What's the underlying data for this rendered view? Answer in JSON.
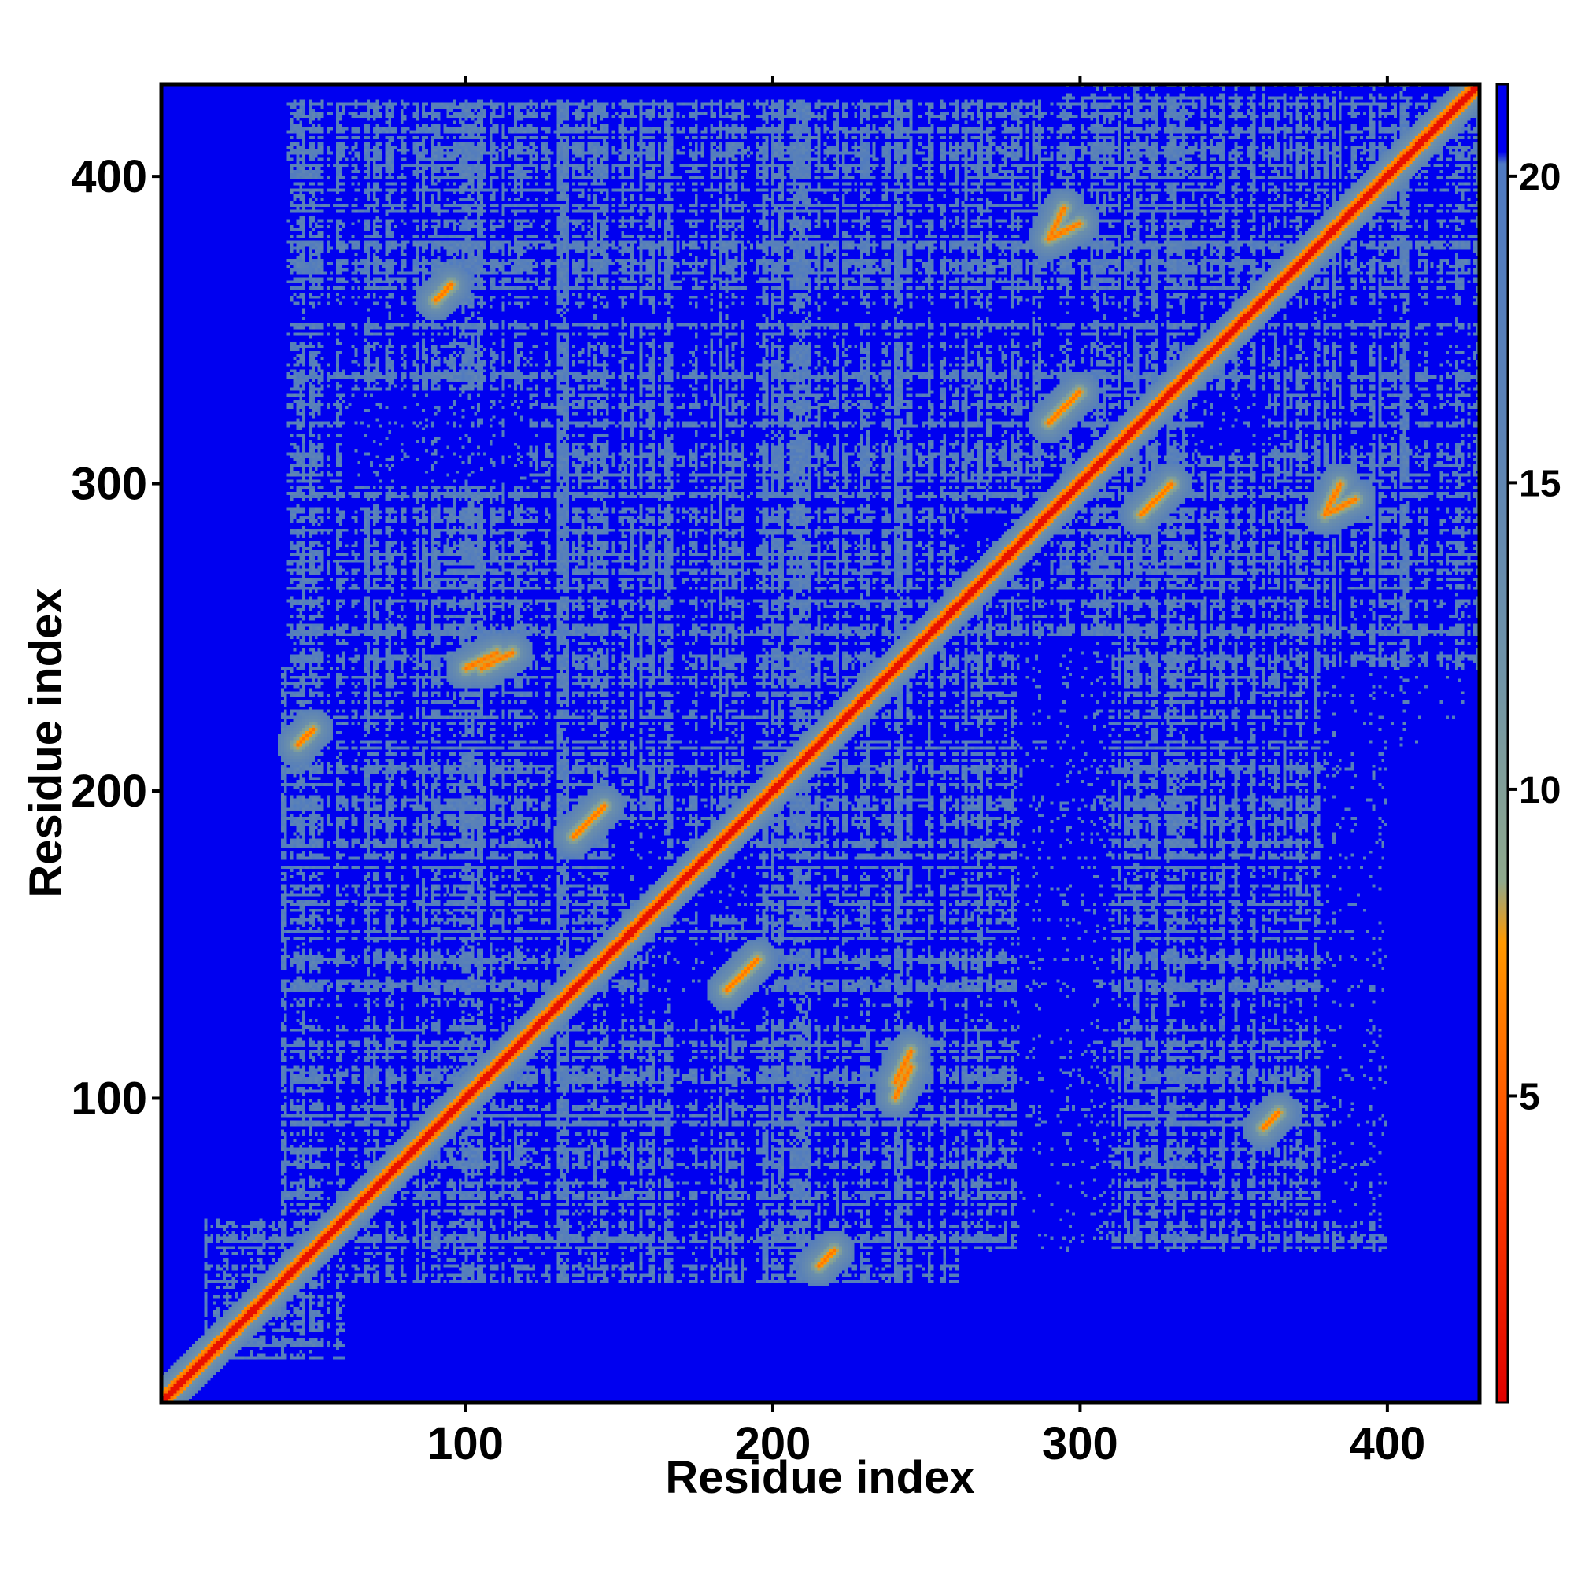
{
  "chart_data": {
    "type": "heatmap",
    "title": "",
    "xlabel": "Residue index",
    "ylabel": "Residue index",
    "xlim": [
      1,
      430
    ],
    "ylim": [
      1,
      430
    ],
    "x_ticks": [
      100,
      200,
      300,
      400
    ],
    "y_ticks": [
      100,
      200,
      300,
      400
    ],
    "n_residues": 430,
    "colorbar": {
      "range": [
        0,
        21.5
      ],
      "ticks": [
        5,
        10,
        15,
        20
      ],
      "stops": [
        {
          "value": 0,
          "color": "#e00000"
        },
        {
          "value": 4,
          "color": "#ff4500"
        },
        {
          "value": 7.5,
          "color": "#ff9900"
        },
        {
          "value": 8.5,
          "color": "#8fa88c"
        },
        {
          "value": 12,
          "color": "#6f93a8"
        },
        {
          "value": 16,
          "color": "#5b82b6"
        },
        {
          "value": 20.2,
          "color": "#4f7ac2"
        },
        {
          "value": 20.4,
          "color": "#0000f0"
        },
        {
          "value": 21.5,
          "color": "#0000f0"
        }
      ]
    },
    "colors": {
      "background": "#0000f0",
      "mid": "#5b82b6",
      "contact": "#ff7a00",
      "diagonal": "#e00000"
    },
    "grey_regions": [
      {
        "x": [
          42,
          425
        ],
        "y": [
          215,
          425
        ]
      },
      {
        "x": [
          40,
          260
        ],
        "y": [
          40,
          240
        ]
      },
      {
        "x": [
          60,
          170
        ],
        "y": [
          40,
          120
        ]
      },
      {
        "x": [
          180,
          400
        ],
        "y": [
          50,
          240
        ]
      },
      {
        "x": [
          295,
          430
        ],
        "y": [
          240,
          430
        ]
      },
      {
        "x": [
          15,
          60
        ],
        "y": [
          15,
          60
        ]
      }
    ],
    "blue_holes": [
      {
        "x": [
          170,
          190
        ],
        "y": [
          160,
          180
        ]
      },
      {
        "x": [
          150,
          165
        ],
        "y": [
          165,
          190
        ]
      },
      {
        "x": [
          160,
          200
        ],
        "y": [
          130,
          150
        ]
      },
      {
        "x": [
          280,
          310
        ],
        "y": [
          50,
          250
        ]
      },
      {
        "x": [
          260,
          290
        ],
        "y": [
          270,
          290
        ]
      },
      {
        "x": [
          340,
          360
        ],
        "y": [
          310,
          330
        ]
      },
      {
        "x": [
          60,
          120
        ],
        "y": [
          300,
          330
        ]
      },
      {
        "x": [
          380,
          430
        ],
        "y": [
          60,
          240
        ]
      }
    ],
    "contact_bands": [
      {
        "from": [
          45,
          215
        ],
        "to": [
          50,
          220
        ],
        "value": 6
      },
      {
        "from": [
          290,
          380
        ],
        "to": [
          300,
          385
        ],
        "value": 6
      },
      {
        "from": [
          320,
          290
        ],
        "to": [
          330,
          300
        ],
        "value": 6
      },
      {
        "from": [
          380,
          290
        ],
        "to": [
          390,
          295
        ],
        "value": 6
      },
      {
        "from": [
          190,
          140
        ],
        "to": [
          195,
          145
        ],
        "value": 6
      },
      {
        "from": [
          240,
          100
        ],
        "to": [
          245,
          110
        ],
        "value": 6
      },
      {
        "from": [
          360,
          90
        ],
        "to": [
          365,
          95
        ],
        "value": 6
      },
      {
        "from": [
          105,
          240
        ],
        "to": [
          115,
          245
        ],
        "value": 6
      },
      {
        "from": [
          135,
          185
        ],
        "to": [
          145,
          195
        ],
        "value": 6
      },
      {
        "from": [
          215,
          45
        ],
        "to": [
          220,
          50
        ],
        "value": 6
      }
    ],
    "seed": 7
  }
}
